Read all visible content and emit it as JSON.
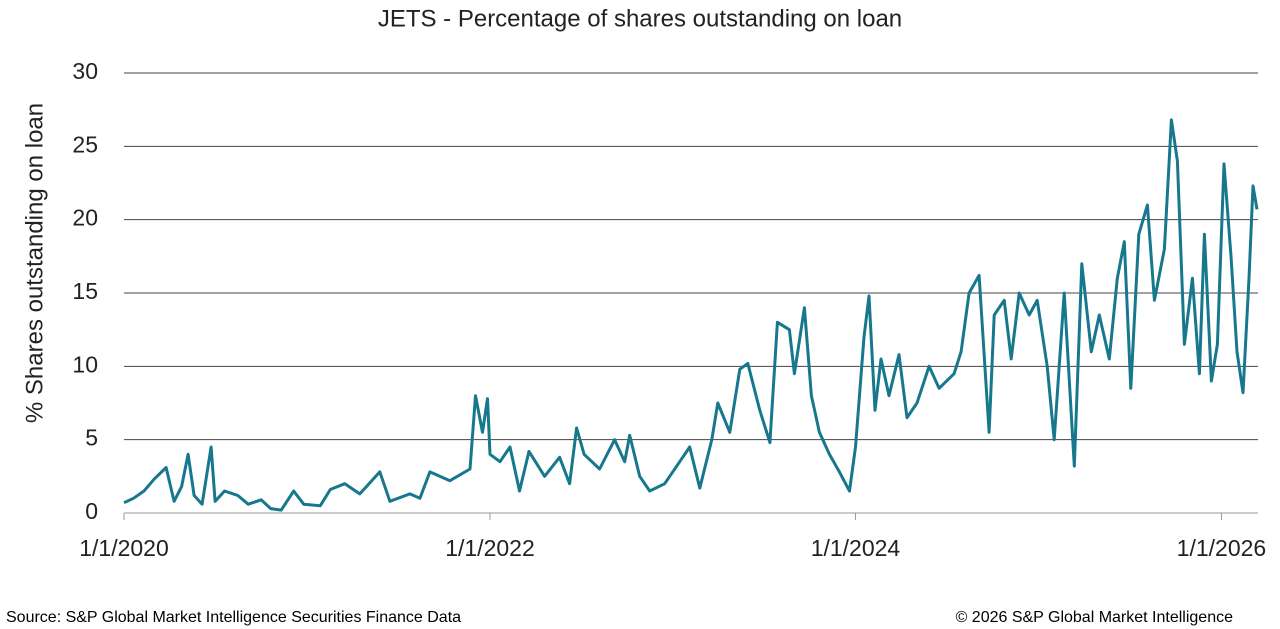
{
  "chart_data": {
    "type": "line",
    "title": "JETS - Percentage of shares outstanding on loan",
    "y_label": "% Shares outstanding on loan",
    "source": "Source: S&P Global Market Intelligence Securities Finance Data",
    "copyright": "© 2026 S&P Global Market Intelligence",
    "xlim": [
      "1/1/2020",
      "3/15/2026"
    ],
    "xticks": [
      "1/1/2020",
      "1/1/2022",
      "1/1/2024",
      "1/1/2026"
    ],
    "ylim": [
      0,
      30
    ],
    "yticks": [
      0,
      5,
      10,
      15,
      20,
      25,
      30
    ],
    "grid": true,
    "x": [
      "1/1/2020",
      "1/20/2020",
      "2/10/2020",
      "3/1/2020",
      "3/25/2020",
      "4/10/2020",
      "4/25/2020",
      "5/8/2020",
      "5/20/2020",
      "6/5/2020",
      "6/23/2020",
      "7/1/2020",
      "7/20/2020",
      "8/15/2020",
      "9/5/2020",
      "10/1/2020",
      "10/20/2020",
      "11/10/2020",
      "12/5/2020",
      "12/25/2020",
      "1/27/2021",
      "2/16/2021",
      "3/17/2021",
      "4/16/2021",
      "5/26/2021",
      "6/15/2021",
      "7/25/2021",
      "8/14/2021",
      "9/3/2021",
      "10/13/2021",
      "11/22/2021",
      "12/3/2021",
      "12/17/2021",
      "12/27/2021",
      "1/1/2022",
      "1/21/2022",
      "2/10/2022",
      "3/1/2022",
      "3/20/2022",
      "4/20/2022",
      "5/20/2022",
      "6/9/2022",
      "6/23/2022",
      "7/8/2022",
      "8/8/2022",
      "9/7/2022",
      "9/27/2022",
      "10/7/2022",
      "10/27/2022",
      "11/16/2022",
      "12/16/2022",
      "1/15/2023",
      "2/4/2023",
      "2/24/2023",
      "3/20/2023",
      "4/1/2023",
      "4/25/2023",
      "5/15/2023",
      "5/31/2023",
      "6/24/2023",
      "7/14/2023",
      "7/29/2023",
      "8/22/2023",
      "9/1/2023",
      "9/21/2023",
      "10/5/2023",
      "10/21/2023",
      "11/10/2023",
      "11/30/2023",
      "12/20/2023",
      "1/1/2024",
      "1/18/2024",
      "1/28/2024",
      "2/9/2024",
      "2/21/2024",
      "3/8/2024",
      "3/28/2024",
      "4/13/2024",
      "5/3/2024",
      "5/27/2024",
      "6/16/2024",
      "7/16/2024",
      "7/30/2024",
      "8/15/2024",
      "9/4/2024",
      "9/24/2024",
      "10/4/2024",
      "10/24/2024",
      "11/7/2024",
      "11/23/2024",
      "12/13/2024",
      "12/29/2024",
      "1/18/2025",
      "2/1/2025",
      "2/21/2025",
      "3/13/2025",
      "3/28/2025",
      "4/16/2025",
      "5/2/2025",
      "5/22/2025",
      "6/7/2025",
      "6/21/2025",
      "7/4/2025",
      "7/20/2025",
      "8/6/2025",
      "8/20/2025",
      "9/9/2025",
      "9/23/2025",
      "10/5/2025",
      "10/19/2025",
      "11/4/2025",
      "11/18/2025",
      "11/28/2025",
      "12/12/2025",
      "12/24/2025",
      "1/6/2026",
      "1/20/2026",
      "2/1/2026",
      "2/13/2026",
      "2/25/2026",
      "3/5/2026",
      "3/13/2026"
    ],
    "series": [
      {
        "name": "JETS",
        "color": "#17788d",
        "values": [
          0.7,
          1.0,
          1.5,
          2.3,
          3.1,
          0.8,
          1.8,
          4.0,
          1.2,
          0.6,
          4.5,
          0.8,
          1.5,
          1.2,
          0.6,
          0.9,
          0.3,
          0.2,
          1.5,
          0.6,
          0.5,
          1.6,
          2.0,
          1.3,
          2.8,
          0.8,
          1.3,
          1.0,
          2.8,
          2.2,
          3.0,
          8.0,
          5.5,
          7.8,
          4.0,
          3.5,
          4.5,
          1.5,
          4.2,
          2.5,
          3.8,
          2.0,
          5.8,
          4.0,
          3.0,
          5.0,
          3.5,
          5.3,
          2.5,
          1.5,
          2.0,
          3.5,
          4.5,
          1.7,
          5.0,
          7.5,
          5.5,
          9.8,
          10.2,
          7.0,
          4.8,
          13.0,
          12.5,
          9.5,
          14.0,
          8.0,
          5.5,
          4.0,
          2.8,
          1.5,
          4.5,
          12.0,
          14.8,
          7.0,
          10.5,
          8.0,
          10.8,
          6.5,
          7.5,
          10.0,
          8.5,
          9.5,
          11.0,
          15.0,
          16.2,
          5.5,
          13.5,
          14.5,
          10.5,
          15.0,
          13.5,
          14.5,
          10.0,
          5.0,
          15.0,
          3.2,
          17.0,
          11.0,
          13.5,
          10.5,
          16.0,
          18.5,
          8.5,
          19.0,
          21.0,
          14.5,
          18.0,
          26.8,
          24.0,
          11.5,
          16.0,
          9.5,
          19.0,
          9.0,
          11.5,
          23.8,
          17.5,
          11.0,
          8.2,
          16.0,
          22.3,
          20.7
        ]
      }
    ]
  }
}
